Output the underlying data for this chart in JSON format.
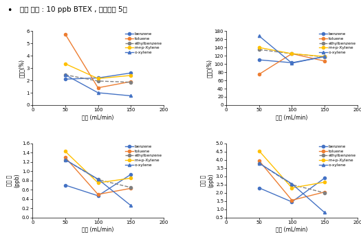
{
  "title": "실험 조건 : 10 ppb BTEX , 흡착시간 5분",
  "x": [
    50,
    100,
    150
  ],
  "xlabel": "유량 (mL/min)",
  "series_labels": [
    "benzene",
    "toluene",
    "ethylbenzene",
    "m+p-Xylene",
    "o-xylene"
  ],
  "plot1_ylabel": "정밀도(%)",
  "plot1_ylim": [
    0,
    6
  ],
  "plot1_yticks": [
    0,
    1,
    2,
    3,
    4,
    5,
    6
  ],
  "plot1_data": [
    [
      2.1,
      2.2,
      2.6
    ],
    [
      5.75,
      1.4,
      1.9
    ],
    [
      2.45,
      1.95,
      1.85
    ],
    [
      3.35,
      2.15,
      2.4
    ],
    [
      2.45,
      1.0,
      0.75
    ]
  ],
  "plot2_ylabel": "정확도(%)",
  "plot2_ylim": [
    0,
    180
  ],
  "plot2_yticks": [
    0,
    20,
    40,
    60,
    80,
    100,
    120,
    140,
    160,
    180
  ],
  "plot2_data": [
    [
      110,
      103,
      118
    ],
    [
      75,
      125,
      107
    ],
    [
      135,
      125,
      117
    ],
    [
      140,
      125,
      118
    ],
    [
      168,
      102,
      118
    ]
  ],
  "plot3_ylabel": "검선 계\n(ppb)",
  "plot3_ylim": [
    0,
    1.6
  ],
  "plot3_yticks": [
    0,
    0.2,
    0.4,
    0.6,
    0.8,
    1.0,
    1.2,
    1.4,
    1.6
  ],
  "plot3_data": [
    [
      0.7,
      0.47,
      0.93
    ],
    [
      1.3,
      0.5,
      0.63
    ],
    [
      1.25,
      0.82,
      0.65
    ],
    [
      1.43,
      0.75,
      0.85
    ],
    [
      1.25,
      0.83,
      0.26
    ]
  ],
  "plot4_ylabel": "정량 계\n(ppb)",
  "plot4_ylim": [
    0.5,
    5
  ],
  "plot4_yticks": [
    0.5,
    1.0,
    1.5,
    2.0,
    2.5,
    3.0,
    3.5,
    4.0,
    4.5,
    5.0
  ],
  "plot4_data": [
    [
      2.3,
      1.45,
      2.9
    ],
    [
      3.95,
      1.55,
      2.05
    ],
    [
      3.8,
      2.5,
      2.0
    ],
    [
      4.55,
      2.3,
      2.65
    ],
    [
      3.8,
      2.55,
      0.8
    ]
  ],
  "series_colors": [
    "#4472c4",
    "#ed7d31",
    "#808080",
    "#ffc000",
    "#4472c4"
  ],
  "series_markers": [
    "o",
    "o",
    "o",
    "o",
    "^"
  ],
  "series_linestyles": [
    "-",
    "-",
    "--",
    "-",
    "-"
  ]
}
